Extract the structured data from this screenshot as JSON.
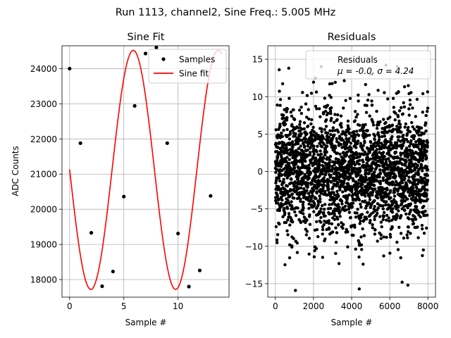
{
  "suptitle": "Run 1113, channel2, Sine Freq.: 5.005 MHz",
  "chart_data": [
    {
      "type": "scatter",
      "title": "Sine Fit",
      "xlabel": "Sample #",
      "ylabel": "ADC Counts",
      "xlim": [
        -0.7,
        14.7
      ],
      "ylim": [
        17500,
        24650
      ],
      "xticks": [
        0,
        5,
        10
      ],
      "yticks": [
        18000,
        19000,
        20000,
        21000,
        22000,
        23000,
        24000
      ],
      "grid": true,
      "legend_position": "top-right",
      "series": [
        {
          "name": "Samples",
          "kind": "scatter",
          "color": "#000000",
          "x": [
            0,
            1,
            2,
            3,
            4,
            5,
            6,
            7,
            8,
            9,
            10,
            11,
            12,
            13
          ],
          "y": [
            24000,
            21880,
            19330,
            17810,
            18230,
            20360,
            22940,
            24430,
            24600,
            21880,
            19310,
            17800,
            18260,
            20380
          ]
        },
        {
          "name": "Sine fit",
          "kind": "line",
          "color": "#ff0000",
          "model": {
            "offset": 21120,
            "amplitude": 3400,
            "period": 7.82,
            "phase_sample": -1.95
          },
          "x_range": [
            0,
            14
          ]
        }
      ]
    },
    {
      "type": "scatter",
      "title": "Residuals",
      "xlabel": "Sample #",
      "xlim": [
        -400,
        8400
      ],
      "ylim": [
        -16.8,
        16.8
      ],
      "xticks": [
        0,
        2000,
        4000,
        6000,
        8000
      ],
      "yticks": [
        -15,
        -10,
        -5,
        0,
        5,
        10,
        15
      ],
      "grid": true,
      "legend_position": "top-right",
      "legend_label": "Residuals",
      "legend_stats": "μ = -0.0, σ = 4.24",
      "series": [
        {
          "name": "Residuals",
          "color": "#000000",
          "n_points": 8000,
          "mean": 0.0,
          "std": 4.24,
          "x_range": [
            0,
            8000
          ],
          "outliers": [
            [
              1050,
              -15.9
            ],
            [
              4400,
              -15.7
            ],
            [
              6950,
              -15.2
            ],
            [
              6650,
              -14.8
            ],
            [
              2400,
              14.0
            ],
            [
              5800,
              14.2
            ],
            [
              200,
              13.6
            ],
            [
              700,
              13.8
            ],
            [
              6400,
              14.0
            ],
            [
              3800,
              13.4
            ],
            [
              5000,
              13.0
            ],
            [
              2100,
              12.5
            ]
          ]
        }
      ]
    }
  ]
}
